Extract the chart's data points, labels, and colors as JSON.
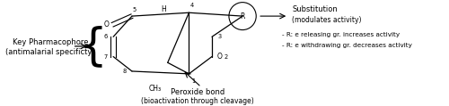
{
  "bg_color": "#ffffff",
  "fig_width": 5.0,
  "fig_height": 1.19,
  "dpi": 100,
  "left_line1": "Key Pharmacophore",
  "left_line2": "(antimalarial specificty)",
  "substitution_label": "Substitution",
  "substitution_sub": "(modulates activity)",
  "r_releasing": "- R: e releasing gr. increases activity",
  "r_withdrawing": "- R: e withdrawing gr. decreases activity",
  "peroxide_label": "Peroxide bond",
  "peroxide_sub": "(bioactivation through cleavage)"
}
